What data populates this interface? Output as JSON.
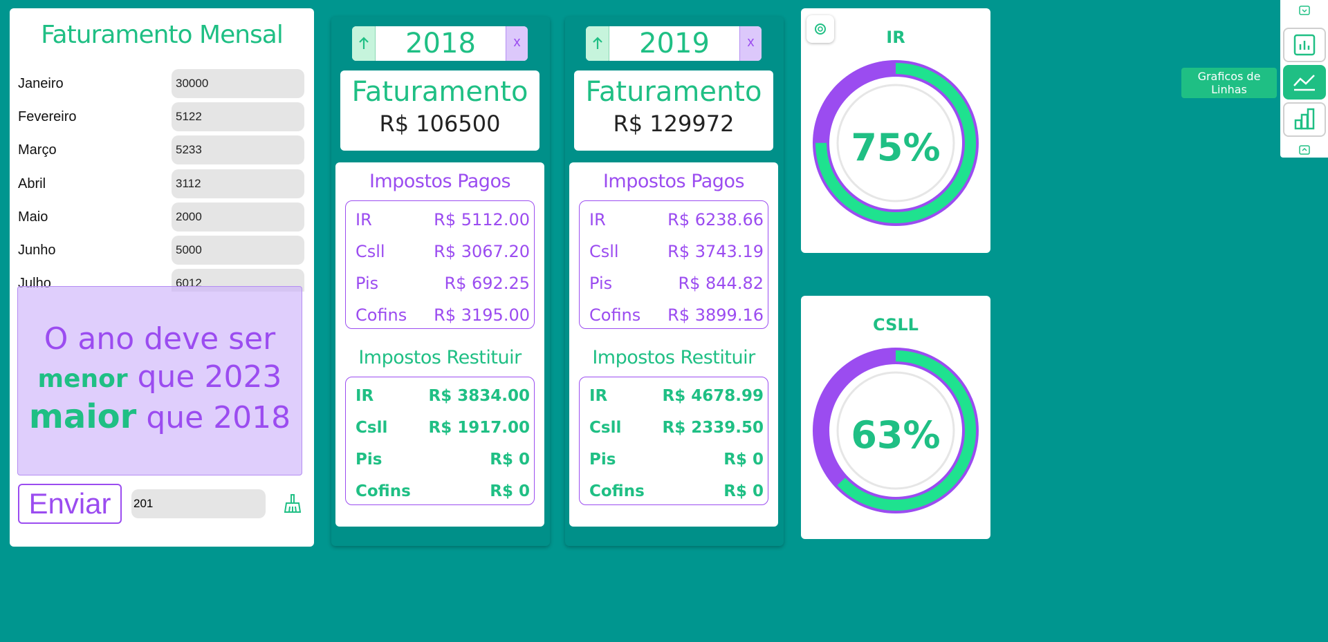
{
  "monthly": {
    "title": "Faturamento Mensal",
    "months": [
      {
        "label": "Janeiro",
        "value": "30000"
      },
      {
        "label": "Fevereiro",
        "value": "5122"
      },
      {
        "label": "Março",
        "value": "5233"
      },
      {
        "label": "Abril",
        "value": "3112"
      },
      {
        "label": "Maio",
        "value": "2000"
      },
      {
        "label": "Junho",
        "value": "5000"
      },
      {
        "label": "Julho",
        "value": "6012"
      }
    ],
    "overlay": {
      "line1": "O ano deve ser",
      "line2_bold": "menor",
      "line2_rest": " que 2023",
      "line3_bold": "maior",
      "line3_rest": " que 2018"
    },
    "send_label": "Enviar",
    "year_input_value": "201"
  },
  "years": [
    {
      "year": "2018",
      "close": "x",
      "fat_title": "Faturamento",
      "fat_value": "R$ 106500",
      "paid_title": "Impostos Pagos",
      "paid": [
        {
          "name": "IR",
          "value": "R$ 5112.00"
        },
        {
          "name": "Csll",
          "value": "R$ 3067.20"
        },
        {
          "name": "Pis",
          "value": "R$ 692.25"
        },
        {
          "name": "Cofins",
          "value": "R$ 3195.00"
        }
      ],
      "rest_title": "Impostos Restituir",
      "rest": [
        {
          "name": "IR",
          "value": "R$ 3834.00"
        },
        {
          "name": "Csll",
          "value": "R$ 1917.00"
        },
        {
          "name": "Pis",
          "value": "R$ 0"
        },
        {
          "name": "Cofins",
          "value": "R$ 0"
        }
      ]
    },
    {
      "year": "2019",
      "close": "x",
      "fat_title": "Faturamento",
      "fat_value": "R$ 129972",
      "paid_title": "Impostos Pagos",
      "paid": [
        {
          "name": "IR",
          "value": "R$ 6238.66"
        },
        {
          "name": "Csll",
          "value": "R$ 3743.19"
        },
        {
          "name": "Pis",
          "value": "R$ 844.82"
        },
        {
          "name": "Cofins",
          "value": "R$ 3899.16"
        }
      ],
      "rest_title": "Impostos Restituir",
      "rest": [
        {
          "name": "IR",
          "value": "R$ 4678.99"
        },
        {
          "name": "Csll",
          "value": "R$ 2339.50"
        },
        {
          "name": "Pis",
          "value": "R$ 0"
        },
        {
          "name": "Cofins",
          "value": "R$ 0"
        }
      ]
    }
  ],
  "gauges": [
    {
      "title": "IR",
      "label": "75%",
      "percent": 75
    },
    {
      "title": "CSLL",
      "label": "63%",
      "percent": 63
    }
  ],
  "colors": {
    "green": "#1fbf84",
    "purple": "#9b4cf0",
    "background": "#00968f"
  },
  "toolbar": {
    "tooltip": "Graficos de Linhas",
    "icons": [
      "bar-chart-icon",
      "line-chart-icon",
      "column-chart-icon"
    ]
  }
}
